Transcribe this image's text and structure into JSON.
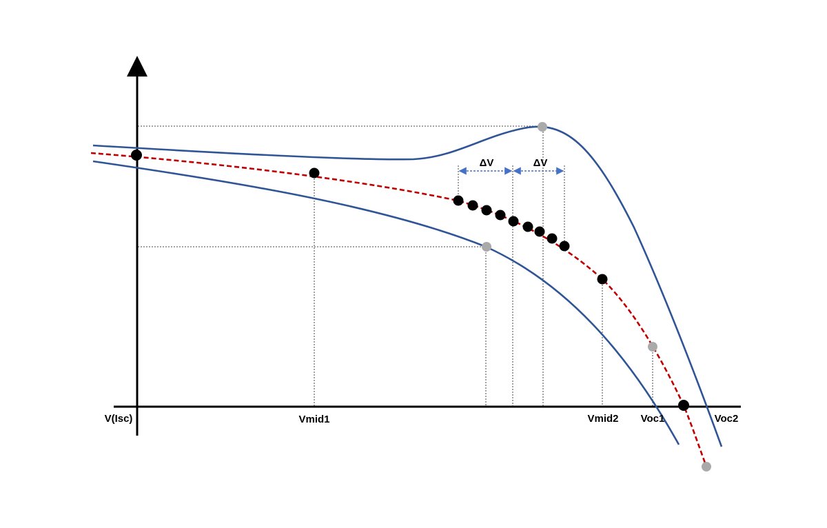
{
  "labels": {
    "v_isc": "V(Isc)",
    "vmid1": "Vmid1",
    "vmid2": "Vmid2",
    "voc1": "Voc1",
    "voc2": "Voc2",
    "delta_v_1": "ΔV",
    "delta_v_2": "ΔV"
  },
  "colors": {
    "iv_curves": "#2f5597",
    "estimated_curve": "#c00000",
    "sample_point": "#000000",
    "reference_point": "#aaaaaa",
    "delta_arrow": "#4472c4",
    "guide_line": "#444444"
  }
}
